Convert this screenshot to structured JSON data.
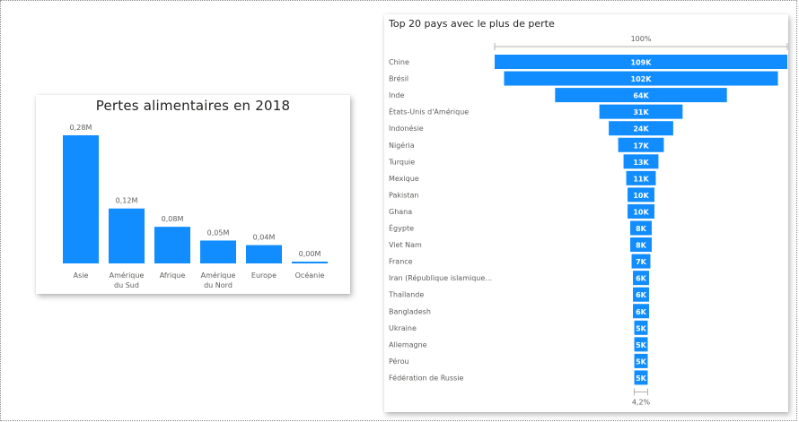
{
  "colors": {
    "bar": "#118DFF",
    "text": "#605E5C",
    "white": "#ffffff"
  },
  "chart_data": [
    {
      "type": "bar",
      "title": "Pertes alimentaires en 2018",
      "categories": [
        [
          "Asie"
        ],
        [
          "Amérique",
          "du Sud"
        ],
        [
          "Afrique"
        ],
        [
          "Amérique",
          "du Nord"
        ],
        [
          "Europe"
        ],
        [
          "Océanie"
        ]
      ],
      "values": [
        0.28,
        0.12,
        0.08,
        0.05,
        0.04,
        0.002
      ],
      "data_labels": [
        "0,28M",
        "0,12M",
        "0,08M",
        "0,05M",
        "0,04M",
        "0,00M"
      ],
      "grid": false
    },
    {
      "type": "funnel",
      "title": "Top 20 pays avec le plus de perte",
      "top_percent_label": "100%",
      "bottom_percent_label": "4,2%",
      "categories": [
        "Chine",
        "Brésil",
        "Inde",
        "États-Unis d'Amérique",
        "Indonésie",
        "Nigéria",
        "Turquie",
        "Mexique",
        "Pakistan",
        "Ghana",
        "Égypte",
        "Viet Nam",
        "France",
        "Iran (République islamique...",
        "Thaïlande",
        "Bangladesh",
        "Ukraine",
        "Allemagne",
        "Pérou",
        "Fédération de Russie"
      ],
      "values": [
        109,
        102,
        64,
        31,
        24,
        17,
        13,
        11,
        10,
        10,
        8,
        8,
        7,
        6,
        6,
        6,
        5,
        5,
        5,
        5
      ],
      "data_labels": [
        "109K",
        "102K",
        "64K",
        "31K",
        "24K",
        "17K",
        "13K",
        "11K",
        "10K",
        "10K",
        "8K",
        "8K",
        "7K",
        "6K",
        "6K",
        "6K",
        "5K",
        "5K",
        "5K",
        "5K"
      ]
    }
  ]
}
